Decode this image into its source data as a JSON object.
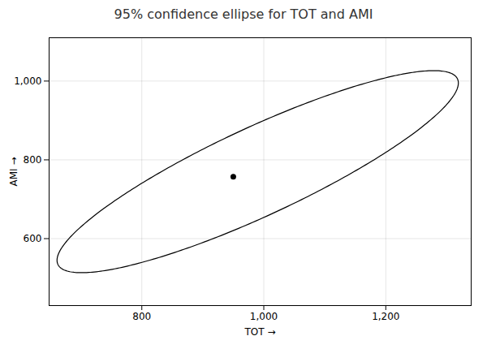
{
  "chart_data": {
    "type": "ellipse",
    "title": "95% confidence ellipse for TOT and AMI",
    "xlabel": "TOT",
    "ylabel": "AMI",
    "ellipse": {
      "center_x": 990,
      "center_y": 770,
      "width": 810,
      "height": 200,
      "angle": 37,
      "color": "#000000"
    },
    "point": {
      "x": 950,
      "y": 757,
      "color": "#000000"
    },
    "xlim": [
      648,
      1340
    ],
    "ylim": [
      430,
      1110
    ],
    "xticks": [
      800,
      1000,
      1200
    ],
    "yticks": [
      600,
      800,
      1000
    ],
    "grid": true
  }
}
